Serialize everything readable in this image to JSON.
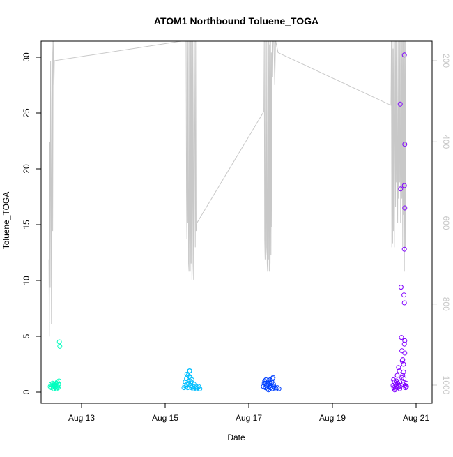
{
  "chart_data": {
    "type": "scatter",
    "title": "ATOM1 Northbound Toluene_TOGA",
    "xlabel": "Date",
    "ylabel": "Toluene_TOGA",
    "x_ticks": [
      "Aug 13",
      "Aug 15",
      "Aug 17",
      "Aug 19",
      "Aug 21"
    ],
    "y_ticks": [
      "0",
      "5",
      "10",
      "15",
      "20",
      "25",
      "30"
    ],
    "y2_ticks": [
      "200",
      "400",
      "600",
      "800",
      "1000"
    ],
    "xlim_days": [
      12.2,
      21.1
    ],
    "ylim": [
      0,
      31
    ],
    "y2lim_reversed": [
      1000,
      200
    ],
    "colors": {
      "flight1": "#00ffbf",
      "flight2": "#00bfff",
      "flight3": "#0040ff",
      "flight4": "#8000ff",
      "altitude_line": "#c8c8c8",
      "axis": "#000000",
      "right_axis": "#c8c8c8"
    },
    "series": [
      {
        "points": [
          [
            12.25,
            0.5
          ],
          [
            12.27,
            0.7
          ],
          [
            12.28,
            0.4
          ],
          [
            12.3,
            0.6
          ],
          [
            12.31,
            0.8
          ],
          [
            12.32,
            0.5
          ],
          [
            12.33,
            0.3
          ],
          [
            12.35,
            0.6
          ],
          [
            12.36,
            0.7
          ],
          [
            12.37,
            0.4
          ],
          [
            12.38,
            0.5
          ],
          [
            12.4,
            0.8
          ],
          [
            12.41,
            0.6
          ],
          [
            12.42,
            0.9
          ],
          [
            12.43,
            0.5
          ],
          [
            12.44,
            0.4
          ],
          [
            12.45,
            0.7
          ],
          [
            12.47,
            4.5
          ],
          [
            12.48,
            4.1
          ],
          [
            12.46,
            1.0
          ],
          [
            12.4,
            0.3
          ]
        ]
      },
      {
        "points": [
          [
            15.45,
            0.4
          ],
          [
            15.47,
            0.6
          ],
          [
            15.48,
            0.9
          ],
          [
            15.5,
            0.5
          ],
          [
            15.51,
            1.2
          ],
          [
            15.52,
            0.7
          ],
          [
            15.54,
            0.4
          ],
          [
            15.55,
            1.5
          ],
          [
            15.56,
            0.8
          ],
          [
            15.57,
            1.0
          ],
          [
            15.58,
            1.9
          ],
          [
            15.59,
            1.9
          ],
          [
            15.6,
            1.3
          ],
          [
            15.61,
            0.6
          ],
          [
            15.62,
            0.9
          ],
          [
            15.63,
            0.4
          ],
          [
            15.64,
            1.1
          ],
          [
            15.65,
            0.5
          ],
          [
            15.67,
            0.3
          ],
          [
            15.69,
            0.7
          ],
          [
            15.71,
            0.4
          ],
          [
            15.73,
            0.5
          ],
          [
            15.75,
            0.3
          ],
          [
            15.78,
            0.4
          ],
          [
            15.8,
            0.5
          ],
          [
            15.83,
            0.3
          ],
          [
            15.52,
            1.6
          ],
          [
            15.58,
            1.4
          ]
        ]
      },
      {
        "points": [
          [
            17.35,
            0.5
          ],
          [
            17.37,
            0.8
          ],
          [
            17.38,
            1.0
          ],
          [
            17.4,
            0.4
          ],
          [
            17.41,
            1.1
          ],
          [
            17.42,
            0.6
          ],
          [
            17.44,
            0.3
          ],
          [
            17.45,
            0.9
          ],
          [
            17.46,
            0.7
          ],
          [
            17.48,
            1.0
          ],
          [
            17.49,
            0.5
          ],
          [
            17.5,
            0.8
          ],
          [
            17.51,
            1.1
          ],
          [
            17.52,
            0.4
          ],
          [
            17.53,
            0.6
          ],
          [
            17.55,
            0.9
          ],
          [
            17.56,
            0.3
          ],
          [
            17.57,
            1.2
          ],
          [
            17.58,
            1.3
          ],
          [
            17.59,
            0.7
          ],
          [
            17.6,
            0.5
          ],
          [
            17.62,
            0.4
          ],
          [
            17.65,
            0.3
          ],
          [
            17.68,
            0.4
          ],
          [
            17.72,
            0.3
          ],
          [
            17.4,
            0.8
          ],
          [
            17.47,
            0.2
          ]
        ]
      },
      {
        "points": [
          [
            20.45,
            0.6
          ],
          [
            20.46,
            1.1
          ],
          [
            20.47,
            0.4
          ],
          [
            20.48,
            0.9
          ],
          [
            20.5,
            0.3
          ],
          [
            20.51,
            0.7
          ],
          [
            20.52,
            0.5
          ],
          [
            20.53,
            1.0
          ],
          [
            20.55,
            0.4
          ],
          [
            20.56,
            0.8
          ],
          [
            20.57,
            0.6
          ],
          [
            20.58,
            2.2
          ],
          [
            20.59,
            0.5
          ],
          [
            20.6,
            1.9
          ],
          [
            20.61,
            0.9
          ],
          [
            20.62,
            25.8
          ],
          [
            20.63,
            18.2
          ],
          [
            20.64,
            9.4
          ],
          [
            20.65,
            4.9
          ],
          [
            20.66,
            3.7
          ],
          [
            20.67,
            2.8
          ],
          [
            20.68,
            1.5
          ],
          [
            20.69,
            0.7
          ],
          [
            20.7,
            1.8
          ],
          [
            20.71,
            1.2
          ],
          [
            20.72,
            30.2
          ],
          [
            20.73,
            22.2
          ],
          [
            20.72,
            18.5
          ],
          [
            20.73,
            16.5
          ],
          [
            20.72,
            12.8
          ],
          [
            20.71,
            8.7
          ],
          [
            20.72,
            8.0
          ],
          [
            20.73,
            4.6
          ],
          [
            20.72,
            4.3
          ],
          [
            20.73,
            3.5
          ],
          [
            20.74,
            0.6
          ],
          [
            20.75,
            0.4
          ],
          [
            20.76,
            0.8
          ],
          [
            20.7,
            2.5
          ],
          [
            20.66,
            1.3
          ],
          [
            20.61,
            0.3
          ],
          [
            20.55,
            1.5
          ],
          [
            20.49,
            0.2
          ],
          [
            20.77,
            0.5
          ],
          [
            20.64,
            0.6
          ],
          [
            20.68,
            2.9
          ]
        ]
      }
    ],
    "altitude_line": [
      [
        12.22,
        690
      ],
      [
        12.23,
        880
      ],
      [
        12.24,
        400
      ],
      [
        12.25,
        760
      ],
      [
        12.26,
        200
      ],
      [
        12.27,
        500
      ],
      [
        12.28,
        850
      ],
      [
        12.29,
        300
      ],
      [
        12.3,
        150
      ],
      [
        12.31,
        620
      ],
      [
        12.32,
        180
      ],
      [
        12.33,
        150
      ],
      [
        12.34,
        260
      ],
      [
        12.35,
        200
      ],
      [
        15.5,
        150
      ],
      [
        15.51,
        520
      ],
      [
        15.52,
        640
      ],
      [
        15.53,
        150
      ],
      [
        15.54,
        600
      ],
      [
        15.55,
        150
      ],
      [
        15.56,
        700
      ],
      [
        15.57,
        720
      ],
      [
        15.58,
        150
      ],
      [
        15.59,
        640
      ],
      [
        15.6,
        720
      ],
      [
        15.61,
        150
      ],
      [
        15.62,
        700
      ],
      [
        15.63,
        150
      ],
      [
        15.64,
        740
      ],
      [
        15.65,
        700
      ],
      [
        15.66,
        150
      ],
      [
        15.67,
        560
      ],
      [
        15.68,
        740
      ],
      [
        15.69,
        150
      ],
      [
        15.7,
        150
      ],
      [
        15.72,
        660
      ],
      [
        15.73,
        150
      ],
      [
        15.74,
        620
      ],
      [
        15.76,
        600
      ],
      [
        17.36,
        325
      ],
      [
        17.37,
        150
      ],
      [
        17.38,
        640
      ],
      [
        17.39,
        690
      ],
      [
        17.4,
        150
      ],
      [
        17.41,
        680
      ],
      [
        17.42,
        660
      ],
      [
        17.43,
        150
      ],
      [
        17.44,
        700
      ],
      [
        17.45,
        720
      ],
      [
        17.46,
        150
      ],
      [
        17.47,
        690
      ],
      [
        17.48,
        150
      ],
      [
        17.49,
        720
      ],
      [
        17.5,
        160
      ],
      [
        17.51,
        700
      ],
      [
        17.52,
        150
      ],
      [
        17.53,
        680
      ],
      [
        17.54,
        180
      ],
      [
        17.55,
        610
      ],
      [
        17.56,
        150
      ],
      [
        17.57,
        240
      ],
      [
        17.58,
        150
      ],
      [
        17.6,
        150
      ],
      [
        17.62,
        260
      ],
      [
        17.64,
        150
      ],
      [
        17.7,
        180
      ],
      [
        20.4,
        310
      ],
      [
        20.41,
        150
      ],
      [
        20.42,
        660
      ],
      [
        20.43,
        150
      ],
      [
        20.44,
        650
      ],
      [
        20.45,
        170
      ],
      [
        20.46,
        620
      ],
      [
        20.47,
        150
      ],
      [
        20.48,
        660
      ],
      [
        20.49,
        380
      ],
      [
        20.5,
        150
      ],
      [
        20.51,
        560
      ],
      [
        20.52,
        150
      ],
      [
        20.53,
        500
      ],
      [
        20.54,
        150
      ],
      [
        20.55,
        450
      ],
      [
        20.56,
        600
      ],
      [
        20.57,
        150
      ],
      [
        20.58,
        540
      ],
      [
        20.59,
        330
      ],
      [
        20.6,
        150
      ],
      [
        20.61,
        500
      ],
      [
        20.62,
        150
      ],
      [
        20.63,
        600
      ],
      [
        20.64,
        470
      ],
      [
        20.65,
        150
      ],
      [
        20.66,
        540
      ],
      [
        20.67,
        150
      ],
      [
        20.68,
        660
      ],
      [
        20.69,
        150
      ],
      [
        20.7,
        580
      ],
      [
        20.71,
        150
      ],
      [
        20.72,
        720
      ],
      [
        20.73,
        150
      ],
      [
        20.74,
        660
      ],
      [
        20.75,
        150
      ]
    ]
  }
}
